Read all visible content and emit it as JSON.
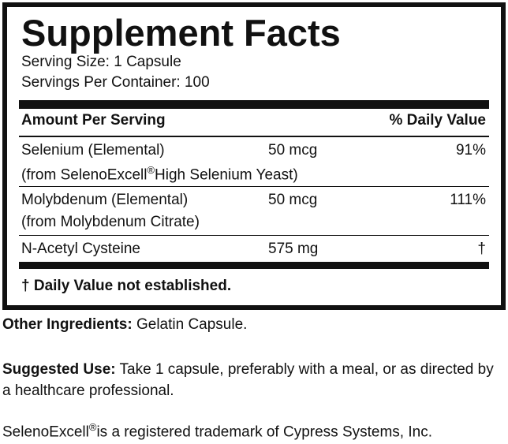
{
  "header": {
    "title": "Supplement Facts",
    "serving_size": "Serving Size: 1 Capsule",
    "servings_per_container": "Servings Per Container: 100"
  },
  "table": {
    "columns": [
      "Amount Per Serving",
      "% Daily Value"
    ],
    "rows": [
      {
        "name": "Selenium (Elemental)",
        "source": [
          "(from SelenoExcell",
          "®",
          "High Selenium Yeast)"
        ],
        "amount": "50 mcg",
        "daily_value": "91%"
      },
      {
        "name": "Molybdenum (Elemental)",
        "source": [
          "(from Molybdenum Citrate)"
        ],
        "amount": "50 mcg",
        "daily_value": "111%"
      },
      {
        "name": "N-Acetyl Cysteine",
        "source": [],
        "amount": "575 mg",
        "daily_value": "†"
      }
    ]
  },
  "footnote": "† Daily Value not established.",
  "other_ingredients": {
    "label": "Other Ingredients:",
    "text": "Gelatin Capsule."
  },
  "suggested_use": {
    "label": "Suggested Use:",
    "text": "Take 1 capsule, preferably with a meal, or as directed by a healthcare professional."
  },
  "trademark": [
    "SelenoExcell",
    "®",
    "is a registered trademark of Cypress Systems, Inc."
  ]
}
